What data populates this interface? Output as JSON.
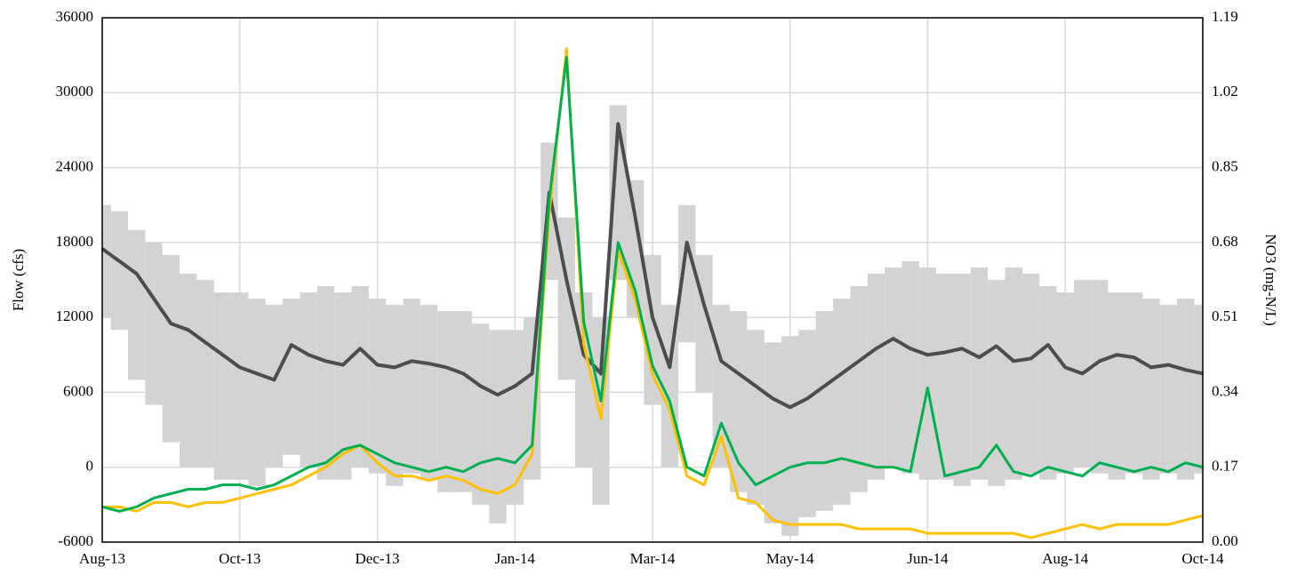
{
  "chart_data": {
    "type": "line",
    "y_label": "Flow (cfs)",
    "y2_label": "NO3 (mg-N/L)",
    "categories": [
      "Aug-13",
      null,
      null,
      null,
      null,
      null,
      null,
      null,
      "Oct-13",
      null,
      null,
      null,
      null,
      null,
      null,
      null,
      "Dec-13",
      null,
      null,
      null,
      null,
      null,
      null,
      null,
      "Jan-14",
      null,
      null,
      null,
      null,
      null,
      null,
      null,
      "Mar-14",
      null,
      null,
      null,
      null,
      null,
      null,
      null,
      "May-14",
      null,
      null,
      null,
      null,
      null,
      null,
      null,
      "Jun-14",
      null,
      null,
      null,
      null,
      null,
      null,
      null,
      "Aug-14",
      null,
      null,
      null,
      null,
      null,
      null,
      null,
      "Oct-14"
    ],
    "band": {
      "color": "#d3d3d3",
      "low": [
        12000,
        11000,
        7000,
        5000,
        2000,
        0,
        0,
        -1000,
        -1000,
        -1500,
        0,
        1000,
        0,
        -1000,
        -1000,
        0,
        -500,
        -1500,
        -500,
        -1000,
        -2000,
        -2000,
        -3000,
        -4500,
        -3000,
        -1000,
        15000,
        7000,
        0,
        -3000,
        15000,
        12000,
        5000,
        0,
        10000,
        6000,
        0,
        -2000,
        -3000,
        -4500,
        -5500,
        -4000,
        -3500,
        -3000,
        -2000,
        -1000,
        0,
        -500,
        -1000,
        -1000,
        -1500,
        -1000,
        -1500,
        -1000,
        -500,
        -1000,
        -500,
        0,
        -500,
        -1000,
        -500,
        -1000,
        -500,
        -1000,
        -500
      ],
      "high": [
        21000,
        20500,
        19000,
        18000,
        17000,
        15500,
        15000,
        14000,
        14000,
        13500,
        13000,
        13500,
        14000,
        14500,
        14000,
        14500,
        13500,
        13000,
        13500,
        13000,
        12500,
        12500,
        11500,
        11000,
        11000,
        12000,
        26000,
        20000,
        14000,
        12000,
        29000,
        23000,
        17000,
        13000,
        21000,
        17000,
        13000,
        12500,
        11000,
        10000,
        10500,
        11000,
        12500,
        13500,
        14500,
        15500,
        16000,
        16500,
        16000,
        15500,
        15500,
        16000,
        15000,
        16000,
        15500,
        14500,
        14000,
        15000,
        15000,
        14000,
        14000,
        13500,
        13000,
        13500,
        13000
      ]
    },
    "series": [
      {
        "color": "#4d4d4d",
        "axis": "y",
        "values": [
          17500,
          16500,
          15500,
          13500,
          11500,
          11000,
          10000,
          9000,
          8000,
          7500,
          7000,
          9800,
          9000,
          8500,
          8200,
          9500,
          8200,
          8000,
          8500,
          8300,
          8000,
          7500,
          6500,
          5800,
          6500,
          7500,
          22000,
          15000,
          9000,
          7500,
          27500,
          20000,
          12000,
          8000,
          18000,
          13000,
          8500,
          7500,
          6500,
          5500,
          4800,
          5500,
          6500,
          7500,
          8500,
          9500,
          10300,
          9500,
          9000,
          9200,
          9500,
          8800,
          9700,
          8500,
          8700,
          9800,
          8000,
          7500,
          8500,
          9000,
          8800,
          8000,
          8200,
          7800,
          7500
        ]
      },
      {
        "color": "#ffc000",
        "axis": "y2",
        "values": [
          0.08,
          0.08,
          0.07,
          0.09,
          0.09,
          0.08,
          0.09,
          0.09,
          0.1,
          0.11,
          0.12,
          0.13,
          0.15,
          0.17,
          0.2,
          0.22,
          0.18,
          0.15,
          0.15,
          0.14,
          0.15,
          0.14,
          0.12,
          0.11,
          0.13,
          0.2,
          0.75,
          1.12,
          0.45,
          0.28,
          0.66,
          0.55,
          0.38,
          0.3,
          0.15,
          0.13,
          0.24,
          0.1,
          0.09,
          0.05,
          0.04,
          0.04,
          0.04,
          0.04,
          0.03,
          0.03,
          0.03,
          0.03,
          0.02,
          0.02,
          0.02,
          0.02,
          0.02,
          0.02,
          0.01,
          0.02,
          0.03,
          0.04,
          0.03,
          0.04,
          0.04,
          0.04,
          0.04,
          0.05,
          0.06
        ]
      },
      {
        "color": "#00b050",
        "axis": "y2",
        "values": [
          0.08,
          0.07,
          0.08,
          0.1,
          0.11,
          0.12,
          0.12,
          0.13,
          0.13,
          0.12,
          0.13,
          0.15,
          0.17,
          0.18,
          0.21,
          0.22,
          0.2,
          0.18,
          0.17,
          0.16,
          0.17,
          0.16,
          0.18,
          0.19,
          0.18,
          0.22,
          0.78,
          1.1,
          0.5,
          0.32,
          0.68,
          0.57,
          0.4,
          0.32,
          0.17,
          0.15,
          0.27,
          0.18,
          0.13,
          0.15,
          0.17,
          0.18,
          0.18,
          0.19,
          0.18,
          0.17,
          0.17,
          0.16,
          0.35,
          0.15,
          0.16,
          0.17,
          0.22,
          0.16,
          0.15,
          0.17,
          0.16,
          0.15,
          0.18,
          0.17,
          0.16,
          0.17,
          0.16,
          0.18,
          0.17
        ]
      }
    ],
    "ylim": [
      -6000,
      36000
    ],
    "yticks": [
      -6000,
      0,
      6000,
      12000,
      18000,
      24000,
      30000,
      36000
    ],
    "y2lim": [
      0,
      1.19
    ],
    "y2ticks": [
      {
        "value": 0,
        "label": "0.00"
      },
      0.17,
      0.34,
      0.51,
      0.68,
      0.85,
      1.02,
      1.19
    ],
    "grid": true
  }
}
